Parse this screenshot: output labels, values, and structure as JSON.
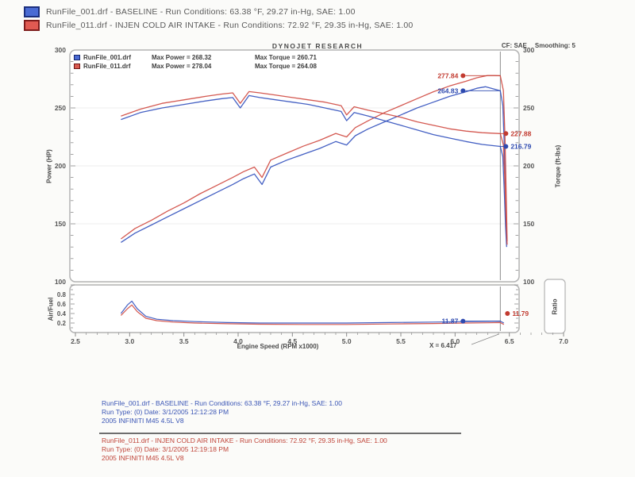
{
  "palette": {
    "blue": "#3a57c0",
    "blue_dark": "#2e4ab0",
    "red": "#d25048",
    "red_dark": "#c23b30",
    "frame": "#b3b3b3",
    "grid": "#ececec",
    "cursor": "#8a8a8a",
    "tick": "#8c8c8c",
    "footer_blue": "#3a55b5",
    "footer_red": "#c0453a"
  },
  "header": {
    "runs": [
      {
        "label": "RunFile_001.drf - BASELINE  -  Run Conditions: 63.38 °F, 29.27 in-Hg, SAE: 1.00"
      },
      {
        "label": "RunFile_011.drf - INJEN COLD AIR INTAKE  -  Run Conditions: 72.92 °F, 29.35 in-Hg, SAE: 1.00"
      }
    ]
  },
  "chart": {
    "title": "DYNOJET RESEARCH",
    "cf_label": "CF: SAE",
    "smoothing_label": "Smoothing: 5",
    "legend": [
      {
        "file": "RunFile_001.drf",
        "max_power": "Max Power = 268.32",
        "max_torque": "Max Torque = 260.71"
      },
      {
        "file": "RunFile_011.drf",
        "max_power": "Max Power = 278.04",
        "max_torque": "Max Torque = 264.08"
      }
    ],
    "left_axis_label": "Power (HP)",
    "right_axis_label": "Torque (ft-lbs)",
    "af_axis_label": "Air/Fuel",
    "ratio_label": "Ratio",
    "x_axis_label": "Engine Speed (RPM x1000)",
    "cursor_label": "X = 6.417"
  },
  "chart_data": {
    "type": "line",
    "title": "DYNOJET RESEARCH",
    "xlabel": "Engine Speed (RPM x1000)",
    "xlim": [
      2.5,
      7.0
    ],
    "x_ticks": [
      2.5,
      3.0,
      3.5,
      4.0,
      4.5,
      5.0,
      5.5,
      6.0,
      6.5,
      7.0
    ],
    "cursor_x": 6.417,
    "main": {
      "ylabel_left": "Power (HP)",
      "ylabel_right": "Torque (ft-lbs)",
      "ylim": [
        100,
        300
      ],
      "y_ticks": [
        300,
        250,
        200,
        150,
        100
      ],
      "max_power": {
        "baseline": 268.32,
        "injen": 278.04
      },
      "max_torque": {
        "baseline": 260.71,
        "injen": 264.08
      },
      "series": [
        {
          "name": "baseline-power",
          "color": "#3a57c0",
          "points": [
            [
              2.92,
              134
            ],
            [
              3.05,
              142
            ],
            [
              3.2,
              149
            ],
            [
              3.35,
              156
            ],
            [
              3.5,
              163
            ],
            [
              3.65,
              170
            ],
            [
              3.8,
              177
            ],
            [
              3.95,
              184
            ],
            [
              4.05,
              189
            ],
            [
              4.15,
              193
            ],
            [
              4.22,
              184
            ],
            [
              4.3,
              199
            ],
            [
              4.45,
              205
            ],
            [
              4.6,
              210
            ],
            [
              4.75,
              215
            ],
            [
              4.9,
              221
            ],
            [
              5.0,
              218
            ],
            [
              5.08,
              226
            ],
            [
              5.2,
              232
            ],
            [
              5.35,
              238
            ],
            [
              5.5,
              244
            ],
            [
              5.65,
              250
            ],
            [
              5.8,
              255
            ],
            [
              5.95,
              260
            ],
            [
              6.1,
              264
            ],
            [
              6.2,
              267
            ],
            [
              6.28,
              268.3
            ],
            [
              6.35,
              266.5
            ],
            [
              6.417,
              264.8
            ],
            [
              6.44,
              252
            ],
            [
              6.455,
              215
            ],
            [
              6.465,
              170
            ],
            [
              6.475,
              133
            ]
          ]
        },
        {
          "name": "injen-power",
          "color": "#d25048",
          "points": [
            [
              2.92,
              137
            ],
            [
              3.05,
              146
            ],
            [
              3.2,
              153
            ],
            [
              3.35,
              161
            ],
            [
              3.5,
              168
            ],
            [
              3.65,
              176
            ],
            [
              3.8,
              183
            ],
            [
              3.95,
              190
            ],
            [
              4.05,
              195
            ],
            [
              4.15,
              199
            ],
            [
              4.22,
              190
            ],
            [
              4.3,
              205
            ],
            [
              4.45,
              211
            ],
            [
              4.6,
              217
            ],
            [
              4.75,
              222
            ],
            [
              4.9,
              228
            ],
            [
              5.0,
              225
            ],
            [
              5.08,
              233
            ],
            [
              5.2,
              239
            ],
            [
              5.35,
              246
            ],
            [
              5.5,
              252
            ],
            [
              5.65,
              258
            ],
            [
              5.8,
              264
            ],
            [
              5.95,
              269
            ],
            [
              6.1,
              273
            ],
            [
              6.2,
              276
            ],
            [
              6.3,
              278
            ],
            [
              6.36,
              278
            ],
            [
              6.417,
              277.8
            ],
            [
              6.445,
              265
            ],
            [
              6.46,
              225
            ],
            [
              6.47,
              180
            ],
            [
              6.48,
              135
            ]
          ]
        },
        {
          "name": "baseline-torque",
          "color": "#3a57c0",
          "points": [
            [
              2.92,
              240
            ],
            [
              3.1,
              246
            ],
            [
              3.3,
              250
            ],
            [
              3.5,
              253
            ],
            [
              3.7,
              256
            ],
            [
              3.85,
              258
            ],
            [
              3.95,
              259
            ],
            [
              4.02,
              250
            ],
            [
              4.1,
              260.7
            ],
            [
              4.2,
              259
            ],
            [
              4.35,
              257
            ],
            [
              4.5,
              255
            ],
            [
              4.65,
              253
            ],
            [
              4.8,
              250
            ],
            [
              4.95,
              247
            ],
            [
              5.0,
              239
            ],
            [
              5.07,
              246
            ],
            [
              5.2,
              243
            ],
            [
              5.35,
              239
            ],
            [
              5.5,
              235
            ],
            [
              5.65,
              231
            ],
            [
              5.8,
              227
            ],
            [
              5.95,
              224
            ],
            [
              6.1,
              221
            ],
            [
              6.25,
              218.5
            ],
            [
              6.417,
              216.8
            ],
            [
              6.44,
              208
            ],
            [
              6.455,
              175
            ],
            [
              6.465,
              148
            ],
            [
              6.475,
              130
            ]
          ]
        },
        {
          "name": "injen-torque",
          "color": "#d25048",
          "points": [
            [
              2.92,
              243
            ],
            [
              3.1,
              249
            ],
            [
              3.3,
              254
            ],
            [
              3.5,
              257
            ],
            [
              3.7,
              260
            ],
            [
              3.85,
              262
            ],
            [
              3.95,
              263
            ],
            [
              4.02,
              254
            ],
            [
              4.1,
              264.1
            ],
            [
              4.2,
              263
            ],
            [
              4.35,
              261
            ],
            [
              4.5,
              259
            ],
            [
              4.65,
              257
            ],
            [
              4.8,
              255
            ],
            [
              4.95,
              252
            ],
            [
              5.0,
              244
            ],
            [
              5.07,
              251
            ],
            [
              5.2,
              248
            ],
            [
              5.35,
              245
            ],
            [
              5.5,
              242
            ],
            [
              5.65,
              238
            ],
            [
              5.8,
              235
            ],
            [
              5.95,
              232
            ],
            [
              6.1,
              230
            ],
            [
              6.25,
              228.6
            ],
            [
              6.417,
              227.9
            ],
            [
              6.445,
              218
            ],
            [
              6.46,
              185
            ],
            [
              6.47,
              155
            ],
            [
              6.48,
              132
            ]
          ]
        }
      ],
      "annotations": [
        {
          "text": "277.84",
          "value": 277.84,
          "color": "#c23b30",
          "side": "left"
        },
        {
          "text": "264.83",
          "value": 264.83,
          "color": "#2e4ab0",
          "side": "left"
        },
        {
          "text": "227.88",
          "value": 227.88,
          "color": "#c23b30",
          "side": "right"
        },
        {
          "text": "216.79",
          "value": 216.79,
          "color": "#2e4ab0",
          "side": "right"
        }
      ]
    },
    "af": {
      "ylabel_left": "Air/Fuel",
      "ylabel_right": "Ratio",
      "y_ticks": [
        0.8,
        0.6,
        0.4,
        0.2
      ],
      "series": [
        {
          "name": "baseline-af",
          "color": "#3a57c0",
          "points": [
            [
              2.92,
              0.4
            ],
            [
              2.98,
              0.58
            ],
            [
              3.02,
              0.66
            ],
            [
              3.07,
              0.5
            ],
            [
              3.15,
              0.34
            ],
            [
              3.25,
              0.28
            ],
            [
              3.4,
              0.25
            ],
            [
              3.6,
              0.23
            ],
            [
              3.9,
              0.21
            ],
            [
              4.2,
              0.2
            ],
            [
              4.6,
              0.2
            ],
            [
              5.0,
              0.2
            ],
            [
              5.4,
              0.21
            ],
            [
              5.8,
              0.22
            ],
            [
              6.1,
              0.23
            ],
            [
              6.3,
              0.235
            ],
            [
              6.417,
              0.24
            ],
            [
              6.45,
              0.2
            ]
          ]
        },
        {
          "name": "injen-af",
          "color": "#d25048",
          "points": [
            [
              2.92,
              0.36
            ],
            [
              2.98,
              0.5
            ],
            [
              3.02,
              0.58
            ],
            [
              3.07,
              0.44
            ],
            [
              3.15,
              0.3
            ],
            [
              3.25,
              0.25
            ],
            [
              3.4,
              0.22
            ],
            [
              3.6,
              0.2
            ],
            [
              3.9,
              0.185
            ],
            [
              4.2,
              0.175
            ],
            [
              4.6,
              0.17
            ],
            [
              5.0,
              0.17
            ],
            [
              5.4,
              0.18
            ],
            [
              5.8,
              0.19
            ],
            [
              6.1,
              0.2
            ],
            [
              6.3,
              0.205
            ],
            [
              6.417,
              0.21
            ],
            [
              6.45,
              0.17
            ]
          ]
        }
      ],
      "annotations": [
        {
          "text": "11.87",
          "color": "#2e4ab0",
          "display_y": 0.24,
          "side": "left"
        },
        {
          "text": "11.79",
          "color": "#c23b30",
          "display_y": 0.4,
          "side": "right"
        }
      ]
    },
    "cursor_label": "X = 6.417"
  },
  "footer": {
    "baseline": {
      "lines": [
        "RunFile_001.drf - BASELINE  -  Run Conditions: 63.38 °F, 29.27 in-Hg, SAE: 1.00",
        "Run Type: (0)  Date: 3/1/2005 12:12:28 PM",
        "2005 INFINITI M45 4.5L V8"
      ]
    },
    "injen": {
      "lines": [
        "RunFile_011.drf - INJEN COLD AIR INTAKE  -  Run Conditions: 72.92 °F, 29.35 in-Hg, SAE: 1.00",
        "Run Type: (0)  Date: 3/1/2005 12:19:18 PM",
        "2005 INFINITI M45 4.5L V8"
      ]
    }
  }
}
